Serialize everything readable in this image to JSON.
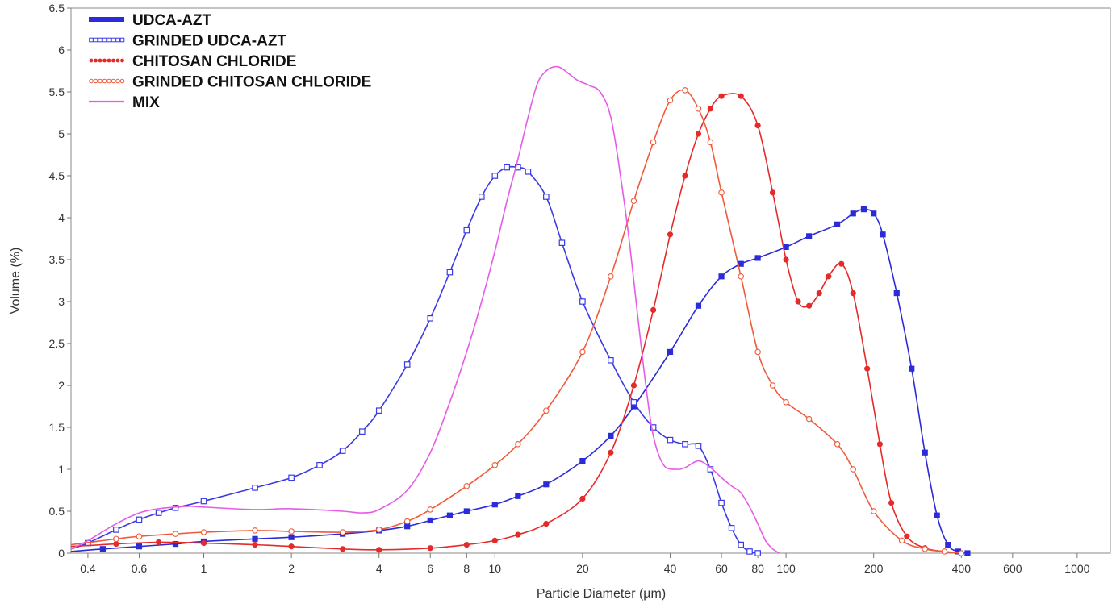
{
  "chart_data": {
    "type": "line",
    "title": "",
    "xlabel": "Particle Diameter (µm)",
    "ylabel": "Volume (%)",
    "xscale": "log",
    "xlim": [
      0.35,
      1300
    ],
    "ylim": [
      0,
      6.5
    ],
    "x_ticks": [
      0.4,
      0.6,
      1,
      2,
      4,
      6,
      8,
      10,
      20,
      40,
      60,
      80,
      100,
      200,
      400,
      600,
      1000
    ],
    "x_tick_labels": [
      "0.4",
      "0.6",
      "1",
      "2",
      "4",
      "6",
      "8",
      "10",
      "20",
      "40",
      "60",
      "80",
      "100",
      "200",
      "400",
      "600",
      "1000"
    ],
    "y_ticks": [
      0,
      0.5,
      1,
      1.5,
      2,
      2.5,
      3,
      3.5,
      4,
      4.5,
      5,
      5.5,
      6,
      6.5
    ],
    "y_tick_labels": [
      "0",
      "0.5",
      "1",
      "1.5",
      "2",
      "2.5",
      "3",
      "3.5",
      "4",
      "4.5",
      "5",
      "5.5",
      "6",
      "6.5"
    ],
    "grid": false,
    "legend_position": "top-left",
    "series": [
      {
        "name": "UDCA-AZT",
        "color": "#2b2bd9",
        "marker": "filled-square",
        "points": [
          [
            0.35,
            0.02
          ],
          [
            0.45,
            0.05
          ],
          [
            0.6,
            0.08
          ],
          [
            0.8,
            0.11
          ],
          [
            1,
            0.14
          ],
          [
            1.5,
            0.17
          ],
          [
            2,
            0.19
          ],
          [
            3,
            0.23
          ],
          [
            4,
            0.27
          ],
          [
            5,
            0.32
          ],
          [
            6,
            0.39
          ],
          [
            7,
            0.45
          ],
          [
            8,
            0.5
          ],
          [
            10,
            0.58
          ],
          [
            12,
            0.68
          ],
          [
            15,
            0.82
          ],
          [
            20,
            1.1
          ],
          [
            25,
            1.4
          ],
          [
            30,
            1.75
          ],
          [
            40,
            2.4
          ],
          [
            50,
            2.95
          ],
          [
            60,
            3.3
          ],
          [
            70,
            3.45
          ],
          [
            80,
            3.52
          ],
          [
            100,
            3.65
          ],
          [
            120,
            3.78
          ],
          [
            150,
            3.92
          ],
          [
            170,
            4.05
          ],
          [
            185,
            4.1
          ],
          [
            200,
            4.05
          ],
          [
            215,
            3.8
          ],
          [
            240,
            3.1
          ],
          [
            270,
            2.2
          ],
          [
            300,
            1.2
          ],
          [
            330,
            0.45
          ],
          [
            360,
            0.1
          ],
          [
            390,
            0.02
          ],
          [
            420,
            0.0
          ]
        ]
      },
      {
        "name": "GRINDED UDCA-AZT",
        "color": "#3a3ae6",
        "marker": "open-square",
        "points": [
          [
            0.35,
            0.05
          ],
          [
            0.4,
            0.12
          ],
          [
            0.5,
            0.28
          ],
          [
            0.6,
            0.4
          ],
          [
            0.7,
            0.48
          ],
          [
            0.8,
            0.54
          ],
          [
            1,
            0.62
          ],
          [
            1.5,
            0.78
          ],
          [
            2,
            0.9
          ],
          [
            2.5,
            1.05
          ],
          [
            3,
            1.22
          ],
          [
            3.5,
            1.45
          ],
          [
            4,
            1.7
          ],
          [
            5,
            2.25
          ],
          [
            6,
            2.8
          ],
          [
            7,
            3.35
          ],
          [
            8,
            3.85
          ],
          [
            9,
            4.25
          ],
          [
            10,
            4.5
          ],
          [
            11,
            4.6
          ],
          [
            12,
            4.6
          ],
          [
            13,
            4.55
          ],
          [
            15,
            4.25
          ],
          [
            17,
            3.7
          ],
          [
            20,
            3.0
          ],
          [
            25,
            2.3
          ],
          [
            30,
            1.8
          ],
          [
            35,
            1.5
          ],
          [
            40,
            1.35
          ],
          [
            45,
            1.3
          ],
          [
            50,
            1.28
          ],
          [
            55,
            1.0
          ],
          [
            60,
            0.6
          ],
          [
            65,
            0.3
          ],
          [
            70,
            0.1
          ],
          [
            75,
            0.02
          ],
          [
            80,
            0.0
          ]
        ]
      },
      {
        "name": "CHITOSAN CHLORIDE",
        "color": "#e52a2a",
        "marker": "filled-circle",
        "points": [
          [
            0.35,
            0.08
          ],
          [
            0.5,
            0.11
          ],
          [
            0.7,
            0.13
          ],
          [
            1,
            0.12
          ],
          [
            1.5,
            0.1
          ],
          [
            2,
            0.08
          ],
          [
            3,
            0.05
          ],
          [
            4,
            0.04
          ],
          [
            6,
            0.06
          ],
          [
            8,
            0.1
          ],
          [
            10,
            0.15
          ],
          [
            12,
            0.22
          ],
          [
            15,
            0.35
          ],
          [
            20,
            0.65
          ],
          [
            25,
            1.2
          ],
          [
            30,
            2.0
          ],
          [
            35,
            2.9
          ],
          [
            40,
            3.8
          ],
          [
            45,
            4.5
          ],
          [
            50,
            5.0
          ],
          [
            55,
            5.3
          ],
          [
            60,
            5.45
          ],
          [
            70,
            5.45
          ],
          [
            80,
            5.1
          ],
          [
            90,
            4.3
          ],
          [
            100,
            3.5
          ],
          [
            110,
            3.0
          ],
          [
            120,
            2.95
          ],
          [
            130,
            3.1
          ],
          [
            140,
            3.3
          ],
          [
            155,
            3.45
          ],
          [
            170,
            3.1
          ],
          [
            190,
            2.2
          ],
          [
            210,
            1.3
          ],
          [
            230,
            0.6
          ],
          [
            260,
            0.2
          ],
          [
            300,
            0.06
          ],
          [
            350,
            0.02
          ],
          [
            400,
            0.0
          ]
        ]
      },
      {
        "name": "GRINDED CHITOSAN CHLORIDE",
        "color": "#f05a3a",
        "marker": "open-circle",
        "points": [
          [
            0.35,
            0.1
          ],
          [
            0.5,
            0.17
          ],
          [
            0.6,
            0.2
          ],
          [
            0.8,
            0.23
          ],
          [
            1,
            0.25
          ],
          [
            1.5,
            0.27
          ],
          [
            2,
            0.26
          ],
          [
            3,
            0.25
          ],
          [
            4,
            0.28
          ],
          [
            5,
            0.38
          ],
          [
            6,
            0.52
          ],
          [
            8,
            0.8
          ],
          [
            10,
            1.05
          ],
          [
            12,
            1.3
          ],
          [
            15,
            1.7
          ],
          [
            20,
            2.4
          ],
          [
            25,
            3.3
          ],
          [
            30,
            4.2
          ],
          [
            35,
            4.9
          ],
          [
            40,
            5.4
          ],
          [
            45,
            5.52
          ],
          [
            50,
            5.3
          ],
          [
            55,
            4.9
          ],
          [
            60,
            4.3
          ],
          [
            70,
            3.3
          ],
          [
            80,
            2.4
          ],
          [
            90,
            2.0
          ],
          [
            100,
            1.8
          ],
          [
            120,
            1.6
          ],
          [
            150,
            1.3
          ],
          [
            170,
            1.0
          ],
          [
            200,
            0.5
          ],
          [
            250,
            0.15
          ],
          [
            300,
            0.05
          ],
          [
            350,
            0.02
          ],
          [
            400,
            0.0
          ]
        ]
      },
      {
        "name": "MIX",
        "color": "#e65ce6",
        "marker": "none",
        "points": [
          [
            0.35,
            0.05
          ],
          [
            0.4,
            0.15
          ],
          [
            0.5,
            0.35
          ],
          [
            0.6,
            0.48
          ],
          [
            0.7,
            0.53
          ],
          [
            0.8,
            0.55
          ],
          [
            0.9,
            0.56
          ],
          [
            1,
            0.55
          ],
          [
            1.5,
            0.52
          ],
          [
            2,
            0.53
          ],
          [
            3,
            0.5
          ],
          [
            3.5,
            0.48
          ],
          [
            4,
            0.52
          ],
          [
            5,
            0.75
          ],
          [
            6,
            1.2
          ],
          [
            7,
            1.8
          ],
          [
            8,
            2.4
          ],
          [
            9,
            3.0
          ],
          [
            10,
            3.6
          ],
          [
            11,
            4.2
          ],
          [
            12,
            4.7
          ],
          [
            13,
            5.2
          ],
          [
            14,
            5.6
          ],
          [
            15,
            5.75
          ],
          [
            16,
            5.8
          ],
          [
            17,
            5.78
          ],
          [
            19,
            5.65
          ],
          [
            21,
            5.58
          ],
          [
            23,
            5.5
          ],
          [
            25,
            5.2
          ],
          [
            27,
            4.5
          ],
          [
            29,
            3.7
          ],
          [
            31,
            2.8
          ],
          [
            33,
            2.0
          ],
          [
            35,
            1.4
          ],
          [
            38,
            1.05
          ],
          [
            42,
            1.0
          ],
          [
            45,
            1.02
          ],
          [
            50,
            1.1
          ],
          [
            55,
            1.02
          ],
          [
            60,
            0.9
          ],
          [
            65,
            0.8
          ],
          [
            70,
            0.72
          ],
          [
            75,
            0.55
          ],
          [
            80,
            0.35
          ],
          [
            85,
            0.15
          ],
          [
            90,
            0.05
          ],
          [
            95,
            0.0
          ]
        ]
      }
    ]
  }
}
